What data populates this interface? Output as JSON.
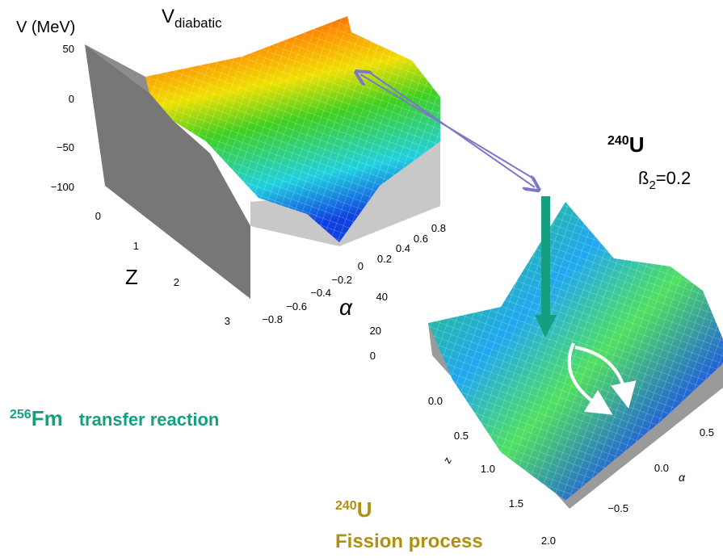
{
  "plot1": {
    "z_axis_label": "V (MeV)",
    "title": "V",
    "title_sub": "diabatic",
    "z_ticks": [
      "50",
      "0",
      "−50",
      "−100"
    ],
    "y_axis_label": "Z",
    "y_ticks": [
      "0",
      "1",
      "2",
      "3"
    ],
    "x_axis_label": "α",
    "x_ticks": [
      "−0.8",
      "−0.6",
      "−0.4",
      "−0.2",
      "0",
      "0.2",
      "0.4",
      "0.6",
      "0.8"
    ]
  },
  "plot2": {
    "nucleus_mass": "240",
    "nucleus_symbol": "U",
    "deformation_symbol": "ß",
    "deformation_sub": "2",
    "deformation_value": "=0.2",
    "z_ticks": [
      "40",
      "20",
      "0"
    ],
    "y_axis_label": "z",
    "y_ticks": [
      "0.0",
      "0.5",
      "1.0",
      "1.5",
      "2.0"
    ],
    "x_axis_label": "α",
    "x_ticks": [
      "0.5",
      "0.0",
      "−0.5"
    ]
  },
  "labels": {
    "fm_mass": "256",
    "fm_symbol": "Fm",
    "fm_text": "transfer  reaction",
    "u_mass": "240",
    "u_symbol": "U",
    "u_text": "Fission process"
  }
}
